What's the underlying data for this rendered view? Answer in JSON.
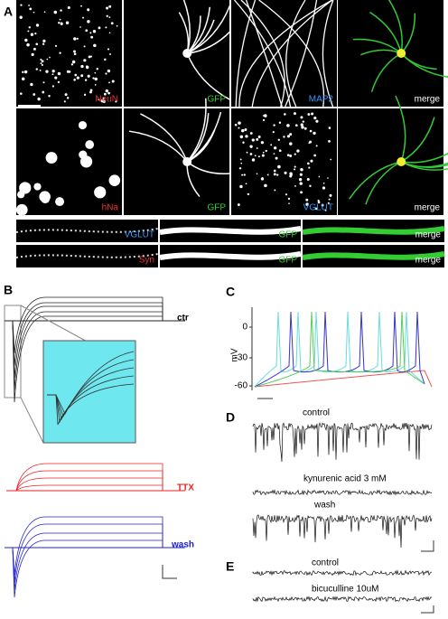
{
  "panel_a": {
    "letter": "A",
    "rows": [
      [
        "NeuN",
        "GFP",
        "MAP2",
        "merge"
      ],
      [
        "hNa",
        "GFP",
        "VGLUT",
        "merge"
      ]
    ],
    "strips": [
      [
        "VGLUT",
        "GFP",
        "merge"
      ],
      [
        "Syn",
        "GFP",
        "merge"
      ]
    ]
  },
  "panel_b": {
    "letter": "B",
    "labels": [
      "ctr",
      "TTX",
      "wash"
    ]
  },
  "panel_c": {
    "letter": "C",
    "yticks": [
      "0",
      "-30",
      "-60"
    ],
    "ylabel": "mV"
  },
  "panel_d": {
    "letter": "D",
    "labels": [
      "control",
      "kynurenic acid 3 mM",
      "wash"
    ]
  },
  "panel_e": {
    "letter": "E",
    "labels": [
      "control",
      "bicuculline 10uM"
    ]
  }
}
